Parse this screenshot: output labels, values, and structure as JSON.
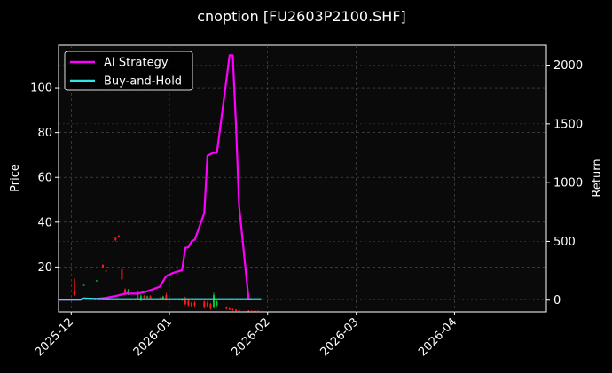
{
  "chart_data": {
    "type": "line",
    "title": "cnoption [FU2603P2100.SHF]",
    "ylabel_left": "Price",
    "ylabel_right": "Return",
    "x_ticks": [
      "2025-12",
      "2026-01",
      "2026-02",
      "2026-03",
      "2026-04"
    ],
    "y_left_ticks": [
      20,
      40,
      60,
      80,
      100
    ],
    "y_right_ticks": [
      0,
      500,
      1000,
      1500,
      2000
    ],
    "xlim": [
      "2025-11-27",
      "2026-04-30"
    ],
    "ylim_left": [
      0,
      119
    ],
    "ylim_right": [
      -100,
      2170
    ],
    "grid": true,
    "legend_position": "top-left",
    "colors": {
      "up": "#00cc33",
      "down": "#ff1a1a",
      "background": "#000000",
      "plot_background": "#0a0a0a"
    },
    "series": [
      {
        "name": "AI Strategy",
        "axis": "right",
        "color": "#ff00ff",
        "x": [
          "2025-11-27",
          "2025-12-04",
          "2025-12-05",
          "2025-12-09",
          "2025-12-12",
          "2025-12-15",
          "2025-12-18",
          "2025-12-22",
          "2025-12-25",
          "2025-12-29",
          "2025-12-31",
          "2026-01-02",
          "2026-01-05",
          "2026-01-06",
          "2026-01-07",
          "2026-01-08",
          "2026-01-09",
          "2026-01-12",
          "2026-01-13",
          "2026-01-15",
          "2026-01-16",
          "2026-01-20",
          "2026-01-21",
          "2026-01-22",
          "2026-01-23",
          "2026-01-26",
          "2026-01-27"
        ],
        "values": [
          5,
          5,
          13,
          10,
          20,
          35,
          55,
          55,
          75,
          115,
          205,
          230,
          255,
          445,
          450,
          500,
          515,
          740,
          1230,
          1255,
          1255,
          2085,
          2085,
          1500,
          800,
          10,
          5
        ]
      },
      {
        "name": "Buy-and-Hold",
        "axis": "right",
        "color": "#33e6e6",
        "x": [
          "2025-11-27",
          "2025-12-04",
          "2025-12-05",
          "2025-12-09",
          "2025-12-12",
          "2026-01-30"
        ],
        "values": [
          5,
          5,
          15,
          10,
          8,
          8
        ]
      }
    ],
    "candles": [
      {
        "date": "2025-12-02",
        "open": 9.0,
        "close": 7.5,
        "high": 14.8,
        "low": 7.2
      },
      {
        "date": "2025-12-05",
        "open": 12.0,
        "close": 12.0,
        "high": 12.2,
        "low": 11.8
      },
      {
        "date": "2025-12-09",
        "open": 14.0,
        "close": 14.0,
        "high": 14.2,
        "low": 13.8
      },
      {
        "date": "2025-12-11",
        "open": 21.0,
        "close": 20.0,
        "high": 21.2,
        "low": 19.8
      },
      {
        "date": "2025-12-12",
        "open": 18.5,
        "close": 18.0,
        "high": 18.8,
        "low": 17.8
      },
      {
        "date": "2025-12-15",
        "open": 33.0,
        "close": 32.0,
        "high": 33.5,
        "low": 31.5
      },
      {
        "date": "2025-12-16",
        "open": 34.0,
        "close": 33.5,
        "high": 34.3,
        "low": 33.3
      },
      {
        "date": "2025-12-17",
        "open": 19.0,
        "close": 14.5,
        "high": 19.5,
        "low": 13.8
      },
      {
        "date": "2025-12-18",
        "open": 10.0,
        "close": 8.0,
        "high": 10.5,
        "low": 7.5
      },
      {
        "date": "2025-12-19",
        "open": 8.0,
        "close": 9.5,
        "high": 10.2,
        "low": 7.5
      },
      {
        "date": "2025-12-22",
        "open": 9.0,
        "close": 6.0,
        "high": 9.5,
        "low": 5.2
      },
      {
        "date": "2025-12-23",
        "open": 6.0,
        "close": 7.0,
        "high": 7.8,
        "low": 4.8
      },
      {
        "date": "2025-12-24",
        "open": 7.0,
        "close": 6.5,
        "high": 7.5,
        "low": 6.0
      },
      {
        "date": "2025-12-25",
        "open": 6.5,
        "close": 6.8,
        "high": 7.2,
        "low": 6.2
      },
      {
        "date": "2025-12-26",
        "open": 7.0,
        "close": 6.0,
        "high": 7.4,
        "low": 5.6
      },
      {
        "date": "2025-12-29",
        "open": 6.0,
        "close": 5.5,
        "high": 6.5,
        "low": 5.2
      },
      {
        "date": "2025-12-30",
        "open": 5.5,
        "close": 6.8,
        "high": 7.2,
        "low": 5.2
      },
      {
        "date": "2025-12-31",
        "open": 7.5,
        "close": 5.5,
        "high": 8.5,
        "low": 5.0
      },
      {
        "date": "2026-01-05",
        "open": 5.5,
        "close": 5.5,
        "high": 6.0,
        "low": 5.0
      },
      {
        "date": "2026-01-06",
        "open": 5.5,
        "close": 3.5,
        "high": 6.8,
        "low": 3.0
      },
      {
        "date": "2026-01-07",
        "open": 5.0,
        "close": 3.0,
        "high": 5.5,
        "low": 2.5
      },
      {
        "date": "2026-01-08",
        "open": 4.0,
        "close": 2.5,
        "high": 4.5,
        "low": 2.0
      },
      {
        "date": "2026-01-09",
        "open": 4.0,
        "close": 3.0,
        "high": 4.8,
        "low": 2.2
      },
      {
        "date": "2026-01-12",
        "open": 4.5,
        "close": 2.0,
        "high": 5.0,
        "low": 1.5
      },
      {
        "date": "2026-01-13",
        "open": 4.0,
        "close": 2.5,
        "high": 4.8,
        "low": 2.0
      },
      {
        "date": "2026-01-14",
        "open": 3.5,
        "close": 1.5,
        "high": 4.0,
        "low": 1.0
      },
      {
        "date": "2026-01-15",
        "open": 2.0,
        "close": 7.5,
        "high": 8.5,
        "low": 1.5
      },
      {
        "date": "2026-01-16",
        "open": 3.0,
        "close": 4.5,
        "high": 5.0,
        "low": 2.5
      },
      {
        "date": "2026-01-19",
        "open": 2.0,
        "close": 1.5,
        "high": 2.5,
        "low": 1.0
      },
      {
        "date": "2026-01-20",
        "open": 1.5,
        "close": 1.0,
        "high": 1.8,
        "low": 0.8
      },
      {
        "date": "2026-01-21",
        "open": 1.2,
        "close": 0.8,
        "high": 1.5,
        "low": 0.5
      },
      {
        "date": "2026-01-22",
        "open": 1.0,
        "close": 0.5,
        "high": 1.2,
        "low": 0.3
      },
      {
        "date": "2026-01-23",
        "open": 0.8,
        "close": 0.4,
        "high": 1.0,
        "low": 0.2
      },
      {
        "date": "2026-01-26",
        "open": 0.6,
        "close": 0.3,
        "high": 0.8,
        "low": 0.2
      },
      {
        "date": "2026-01-27",
        "open": 0.5,
        "close": 0.3,
        "high": 0.7,
        "low": 0.2
      },
      {
        "date": "2026-01-28",
        "open": 0.6,
        "close": 0.3,
        "high": 0.8,
        "low": 0.2
      },
      {
        "date": "2026-01-29",
        "open": 0.5,
        "close": 0.3,
        "high": 0.7,
        "low": 0.2
      }
    ]
  }
}
